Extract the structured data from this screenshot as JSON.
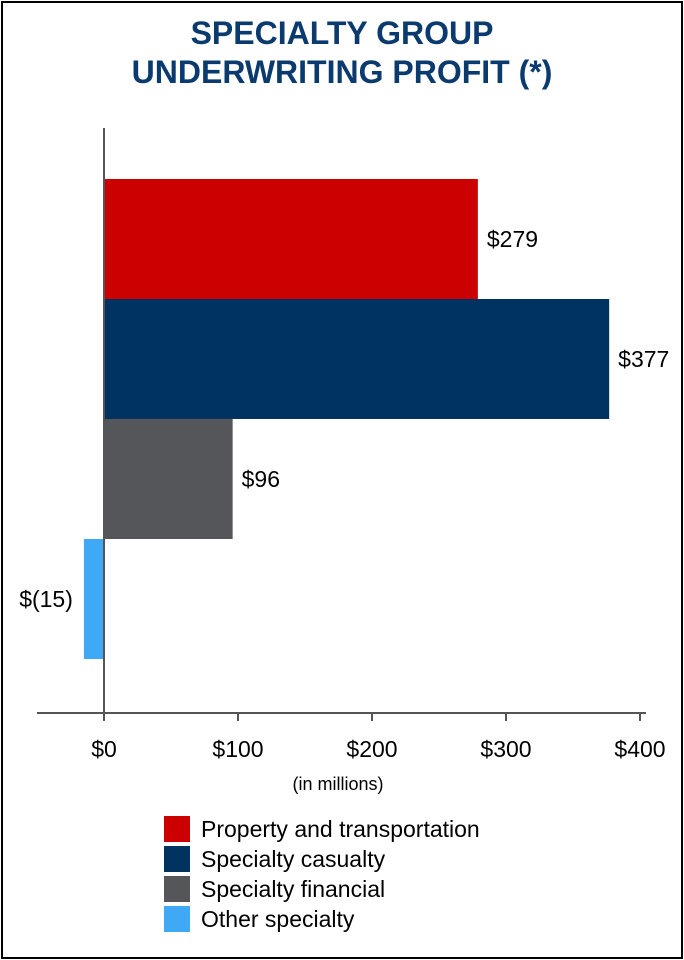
{
  "chart_data": {
    "type": "bar",
    "orientation": "horizontal",
    "title": [
      "SPECIALTY GROUP",
      "UNDERWRITING PROFIT (*)"
    ],
    "xlabel": "(in millions)",
    "ylabel": "",
    "xlim": [
      -50,
      400
    ],
    "xticks": [
      0,
      100,
      200,
      300,
      400
    ],
    "xtick_labels": [
      "$0",
      "$100",
      "$200",
      "$300",
      "$400"
    ],
    "grid": false,
    "legend_position": "bottom",
    "categories": [
      "Property and transportation",
      "Specialty casualty",
      "Specialty financial",
      "Other specialty"
    ],
    "values": [
      279,
      377,
      96,
      -15
    ],
    "value_labels": [
      "$279",
      "$377",
      "$96",
      "$(15)"
    ],
    "colors": [
      "#cc0000",
      "#00335f",
      "#54565a",
      "#3fa9f5"
    ]
  },
  "colors": {
    "title": "#0b3a6e",
    "axis": "#555555"
  }
}
